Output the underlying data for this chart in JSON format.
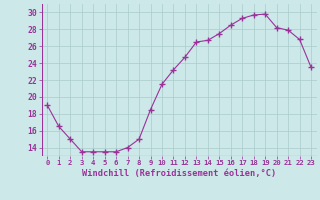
{
  "x": [
    0,
    1,
    2,
    3,
    4,
    5,
    6,
    7,
    8,
    9,
    10,
    11,
    12,
    13,
    14,
    15,
    16,
    17,
    18,
    19,
    20,
    21,
    22,
    23
  ],
  "y": [
    19.0,
    16.5,
    15.0,
    13.5,
    13.5,
    13.5,
    13.5,
    14.0,
    15.0,
    18.5,
    21.5,
    23.2,
    24.7,
    26.5,
    26.7,
    27.5,
    28.5,
    29.3,
    29.7,
    29.8,
    28.2,
    27.9,
    26.8,
    23.5
  ],
  "line_color": "#993399",
  "marker": "+",
  "marker_size": 4,
  "bg_color": "#cce8e8",
  "grid_color": "#aacccc",
  "xlabel": "Windchill (Refroidissement éolien,°C)",
  "xlabel_color": "#993399",
  "tick_color": "#993399",
  "ylim": [
    13.0,
    31.0
  ],
  "xlim": [
    -0.5,
    23.5
  ],
  "yticks": [
    14,
    16,
    18,
    20,
    22,
    24,
    26,
    28,
    30
  ],
  "xtick_labels": [
    "0",
    "1",
    "2",
    "3",
    "4",
    "5",
    "6",
    "7",
    "8",
    "9",
    "10",
    "11",
    "12",
    "13",
    "14",
    "15",
    "16",
    "17",
    "18",
    "19",
    "20",
    "21",
    "22",
    "23"
  ]
}
